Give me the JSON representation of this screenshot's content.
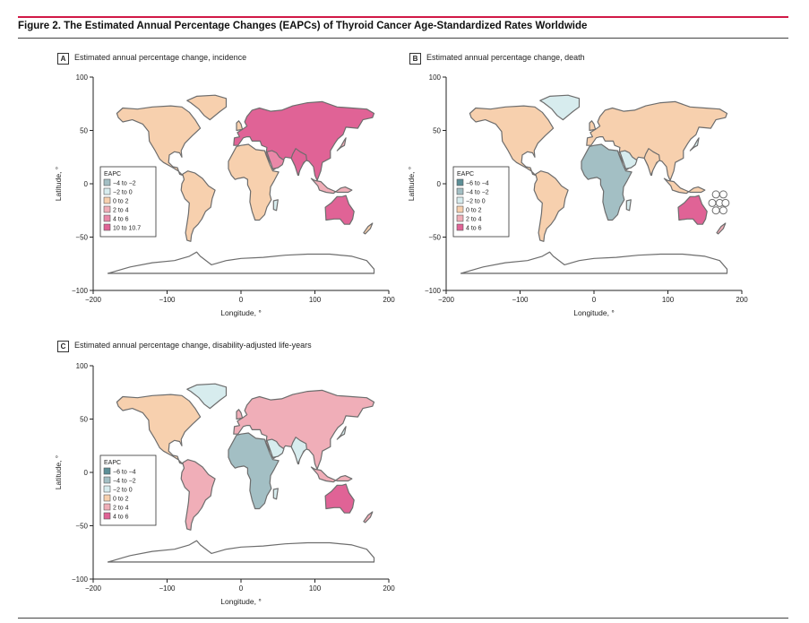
{
  "figure": {
    "title": "Figure 2. The Estimated Annual Percentage Changes (EAPCs) of Thyroid Cancer Age-Standardized Rates Worldwide",
    "accent_color": "#d11947"
  },
  "panels": [
    {
      "letter": "A",
      "title": "Estimated annual percentage change, incidence"
    },
    {
      "letter": "B",
      "title": "Estimated annual percentage change, death"
    },
    {
      "letter": "C",
      "title": "Estimated annual percentage change, disability-adjusted life-years"
    }
  ],
  "chart_data": [
    {
      "type": "map",
      "title": "Estimated annual percentage change, incidence",
      "xlabel": "Longitude, °",
      "ylabel": "Latitude, °",
      "xlim": [
        -200,
        200
      ],
      "ylim": [
        -100,
        100
      ],
      "xticks": [
        "−200",
        "−100",
        "0",
        "100",
        "200"
      ],
      "yticks": [
        "100",
        "50",
        "0",
        "−50",
        "−100"
      ],
      "legend_title": "EAPC",
      "legend_position": "left",
      "legend": [
        {
          "label": "−4 to −2",
          "color": "#a3bfc4"
        },
        {
          "label": "−2 to 0",
          "color": "#d7ecee"
        },
        {
          "label": "0 to 2",
          "color": "#f7d0ae"
        },
        {
          "label": "2 to 4",
          "color": "#f0aeb8"
        },
        {
          "label": "4 to 6",
          "color": "#e988a8"
        },
        {
          "label": "10 to 10.7",
          "color": "#e06396"
        }
      ]
    },
    {
      "type": "map",
      "title": "Estimated annual percentage change, death",
      "xlabel": "Longitude, °",
      "ylabel": "Latitude, °",
      "xlim": [
        -200,
        200
      ],
      "ylim": [
        -100,
        100
      ],
      "xticks": [
        "−200",
        "−100",
        "0",
        "100",
        "200"
      ],
      "yticks": [
        "100",
        "50",
        "0",
        "−50",
        "−100"
      ],
      "legend_title": "EAPC",
      "legend_position": "left",
      "legend": [
        {
          "label": "−6 to −4",
          "color": "#5d8f97"
        },
        {
          "label": "−4 to −2",
          "color": "#a3bfc4"
        },
        {
          "label": "−2 to 0",
          "color": "#d7ecee"
        },
        {
          "label": "0 to 2",
          "color": "#f7d0ae"
        },
        {
          "label": "2 to 4",
          "color": "#f0aeb8"
        },
        {
          "label": "4 to 6",
          "color": "#e06396"
        }
      ]
    },
    {
      "type": "map",
      "title": "Estimated annual percentage change, disability-adjusted life-years",
      "xlabel": "Longitude, °",
      "ylabel": "Latitude, °",
      "xlim": [
        -200,
        200
      ],
      "ylim": [
        -100,
        100
      ],
      "xticks": [
        "−200",
        "−100",
        "0",
        "100",
        "200"
      ],
      "yticks": [
        "100",
        "50",
        "0",
        "−50",
        "−100"
      ],
      "legend_title": "EAPC",
      "legend_position": "left",
      "legend": [
        {
          "label": "−6 to −4",
          "color": "#5d8f97"
        },
        {
          "label": "−4 to −2",
          "color": "#a3bfc4"
        },
        {
          "label": "−2 to 0",
          "color": "#d7ecee"
        },
        {
          "label": "0 to 2",
          "color": "#f7d0ae"
        },
        {
          "label": "2 to 4",
          "color": "#f0aeb8"
        },
        {
          "label": "4 to 6",
          "color": "#e06396"
        }
      ]
    }
  ]
}
